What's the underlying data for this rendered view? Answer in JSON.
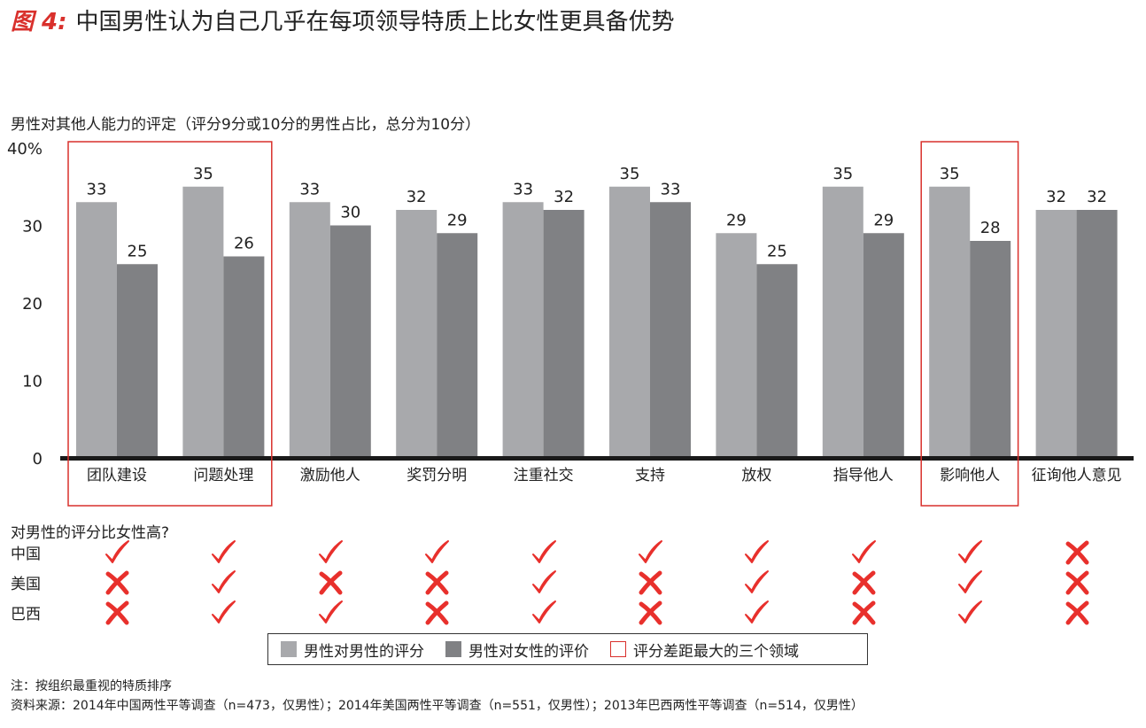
{
  "title": {
    "label": "图 4:",
    "text": "中国男性认为自己几乎在每项领导特质上比女性更具备优势"
  },
  "chart_data": {
    "type": "bar",
    "title": "中国男性认为自己几乎在每项领导特质上比女性更具备优势",
    "subtitle": "男性对其他人能力的评定（评分9分或10分的男性占比，总分为10分）",
    "categories": [
      "团队建设",
      "问题处理",
      "激励他人",
      "奖罚分明",
      "注重社交",
      "支持",
      "放权",
      "指导他人",
      "影响他人",
      "征询他人意见"
    ],
    "series": [
      {
        "name": "男性对男性的评分",
        "values": [
          33,
          35,
          33,
          32,
          33,
          35,
          29,
          35,
          35,
          32
        ],
        "color": "#a8a9ac"
      },
      {
        "name": "男性对女性的评价",
        "values": [
          25,
          26,
          30,
          29,
          32,
          33,
          25,
          29,
          28,
          32
        ],
        "color": "#808184"
      }
    ],
    "ylim": [
      0,
      40
    ],
    "ytick_labels": [
      "40%",
      "30",
      "20",
      "10",
      "0"
    ],
    "highlighted_categories": [
      "团队建设",
      "问题处理",
      "影响他人"
    ],
    "highlight_color": "#d9302c",
    "grid": false
  },
  "comparison": {
    "question": "对男性的评分比女性高?",
    "rows": [
      {
        "country": "中国",
        "marks": [
          true,
          true,
          true,
          true,
          true,
          true,
          true,
          true,
          true,
          false
        ]
      },
      {
        "country": "美国",
        "marks": [
          false,
          true,
          false,
          false,
          true,
          false,
          true,
          false,
          true,
          false
        ]
      },
      {
        "country": "巴西",
        "marks": [
          false,
          true,
          true,
          false,
          true,
          false,
          true,
          false,
          true,
          false
        ]
      }
    ],
    "mark_color": "#e8302c"
  },
  "legend": {
    "items": [
      {
        "label": "男性对男性的评分",
        "swatch": "#a8a9ac"
      },
      {
        "label": "男性对女性的评价",
        "swatch": "#808184"
      },
      {
        "label": "评分差距最大的三个领域",
        "swatch": "outline-red"
      }
    ]
  },
  "footnotes": {
    "note": "注：按组织最重视的特质排序",
    "source": "资料来源：2014年中国两性平等调查（n=473，仅男性）；2014年美国两性平等调查（n=551，仅男性）；2013年巴西两性平等调查（n=514，仅男性）"
  }
}
